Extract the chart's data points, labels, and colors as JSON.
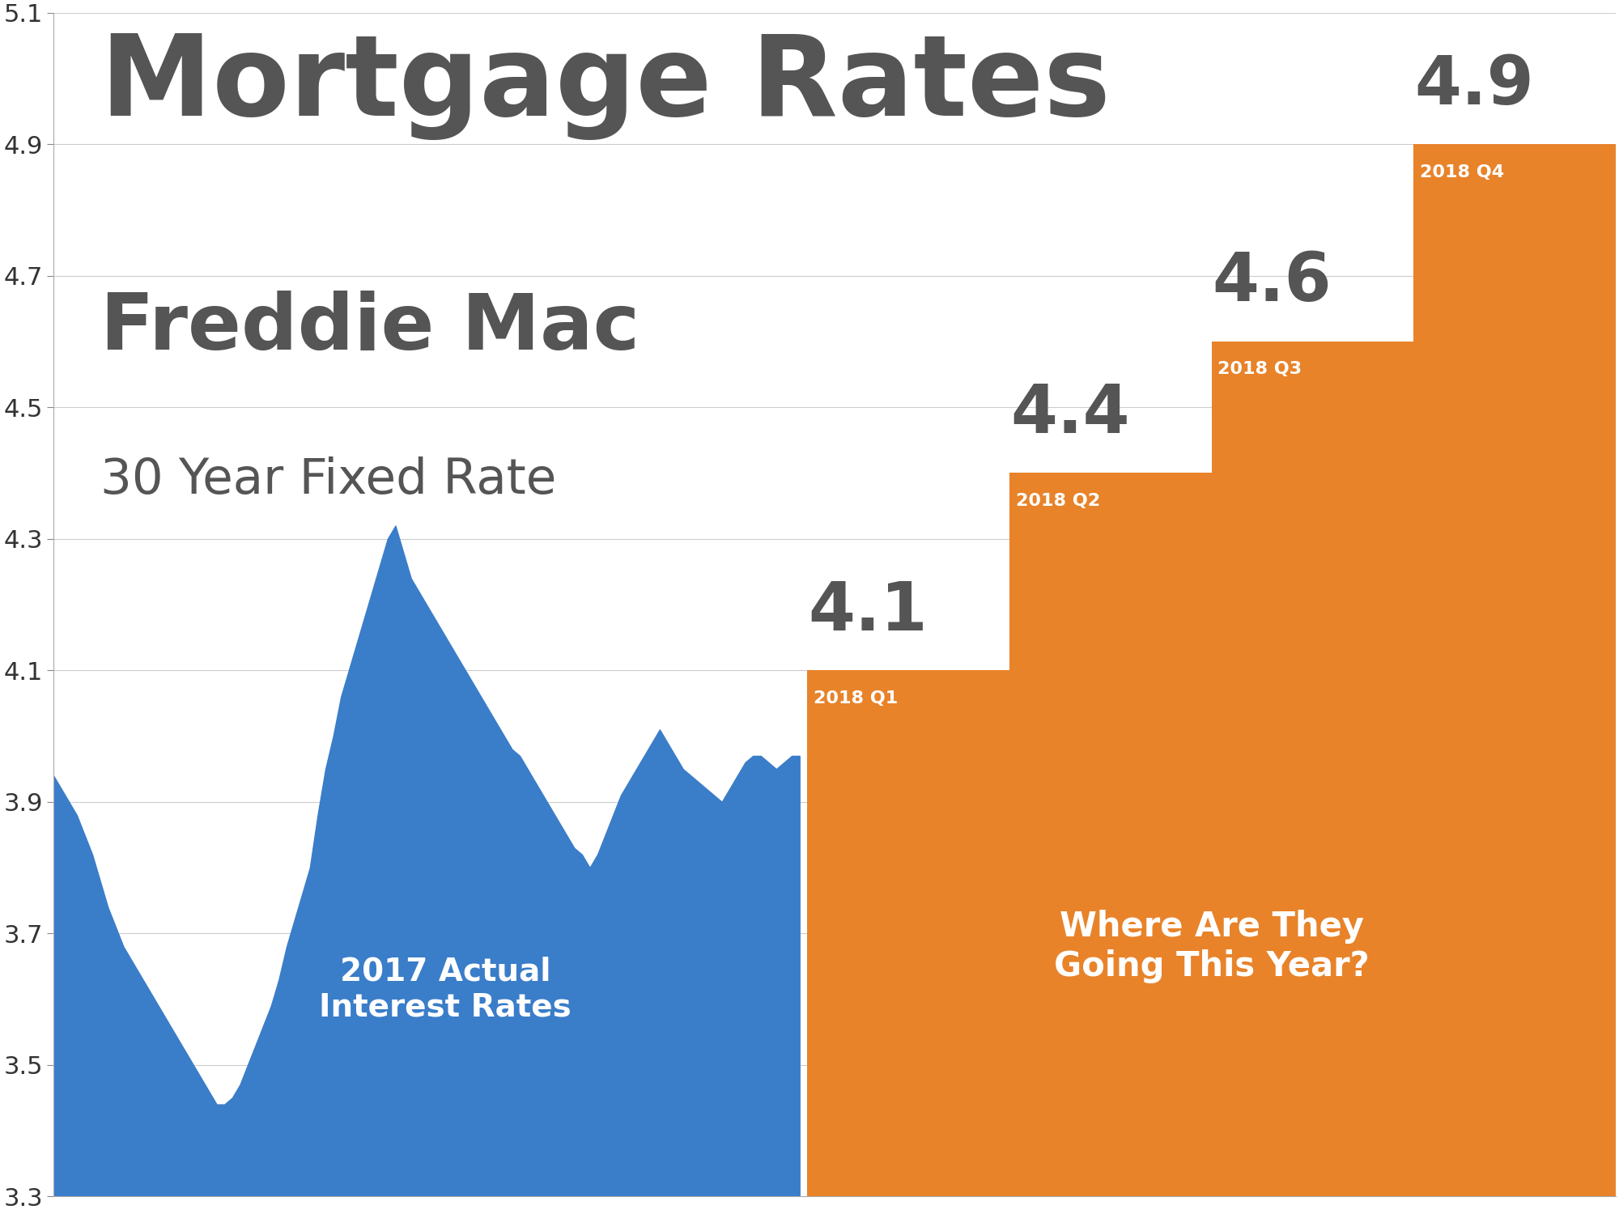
{
  "title": "Mortgage Rates",
  "subtitle1": "Freddie Mac",
  "subtitle2": "30 Year Fixed Rate",
  "title_color": "#555555",
  "background_color": "#ffffff",
  "ylim": [
    3.3,
    5.1
  ],
  "yticks": [
    3.3,
    3.5,
    3.7,
    3.9,
    4.1,
    4.3,
    4.5,
    4.7,
    4.9,
    5.1
  ],
  "blue_color": "#3a7dc9",
  "orange_color": "#e8832a",
  "orange_label": "Where Are They\nGoing This Year?",
  "quarters": [
    "2018 Q1",
    "2018 Q2",
    "2018 Q3",
    "2018 Q4"
  ],
  "quarter_values": [
    4.1,
    4.4,
    4.6,
    4.9
  ],
  "blue_data": [
    3.94,
    3.92,
    3.9,
    3.88,
    3.85,
    3.82,
    3.78,
    3.74,
    3.71,
    3.68,
    3.66,
    3.64,
    3.62,
    3.6,
    3.58,
    3.56,
    3.54,
    3.52,
    3.5,
    3.48,
    3.46,
    3.44,
    3.44,
    3.45,
    3.47,
    3.5,
    3.53,
    3.56,
    3.59,
    3.63,
    3.68,
    3.72,
    3.76,
    3.8,
    3.88,
    3.95,
    4.0,
    4.06,
    4.1,
    4.14,
    4.18,
    4.22,
    4.26,
    4.3,
    4.32,
    4.28,
    4.24,
    4.22,
    4.2,
    4.18,
    4.16,
    4.14,
    4.12,
    4.1,
    4.08,
    4.06,
    4.04,
    4.02,
    4.0,
    3.98,
    3.97,
    3.95,
    3.93,
    3.91,
    3.89,
    3.87,
    3.85,
    3.83,
    3.82,
    3.8,
    3.82,
    3.85,
    3.88,
    3.91,
    3.93,
    3.95,
    3.97,
    3.99,
    4.01,
    3.99,
    3.97,
    3.95,
    3.94,
    3.93,
    3.92,
    3.91,
    3.9,
    3.92,
    3.94,
    3.96,
    3.97,
    3.97,
    3.96,
    3.95,
    3.96,
    3.97,
    3.97
  ]
}
